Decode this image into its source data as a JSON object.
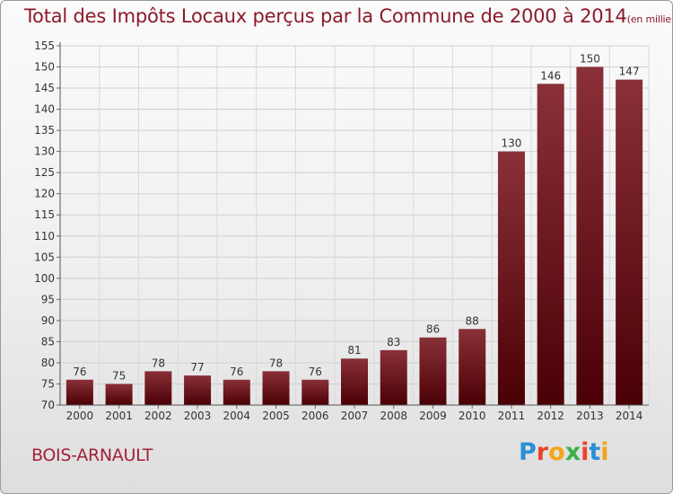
{
  "title": "Total des Impôts Locaux perçus par la Commune de 2000 à 2014",
  "title_unit": "(en milliers d'€)",
  "commune": "BOIS-ARNAULT",
  "logo": {
    "letters": [
      "P",
      "r",
      "o",
      "x",
      "i",
      "t",
      "i"
    ],
    "colors": [
      "#2b8fd6",
      "#e8442a",
      "#f2a51a",
      "#3ab04a",
      "#e8442a",
      "#2b8fd6",
      "#f2a51a"
    ]
  },
  "colors": {
    "bar_top": "#8a3038",
    "bar_bottom": "#4a0005",
    "title": "#8b1a2a"
  },
  "chart_data": {
    "type": "bar",
    "title": "Total des Impôts Locaux perçus par la Commune de 2000 à 2014",
    "categories": [
      "2000",
      "2001",
      "2002",
      "2003",
      "2004",
      "2005",
      "2006",
      "2007",
      "2008",
      "2009",
      "2010",
      "2011",
      "2012",
      "2013",
      "2014"
    ],
    "values": [
      76,
      75,
      78,
      77,
      76,
      78,
      76,
      81,
      83,
      86,
      88,
      130,
      146,
      150,
      147
    ],
    "ylim": [
      70,
      155
    ],
    "yticks": [
      70,
      75,
      80,
      85,
      90,
      95,
      100,
      105,
      110,
      115,
      120,
      125,
      130,
      135,
      140,
      145,
      150,
      155
    ],
    "xlabel": "",
    "ylabel": "",
    "grid": true
  }
}
